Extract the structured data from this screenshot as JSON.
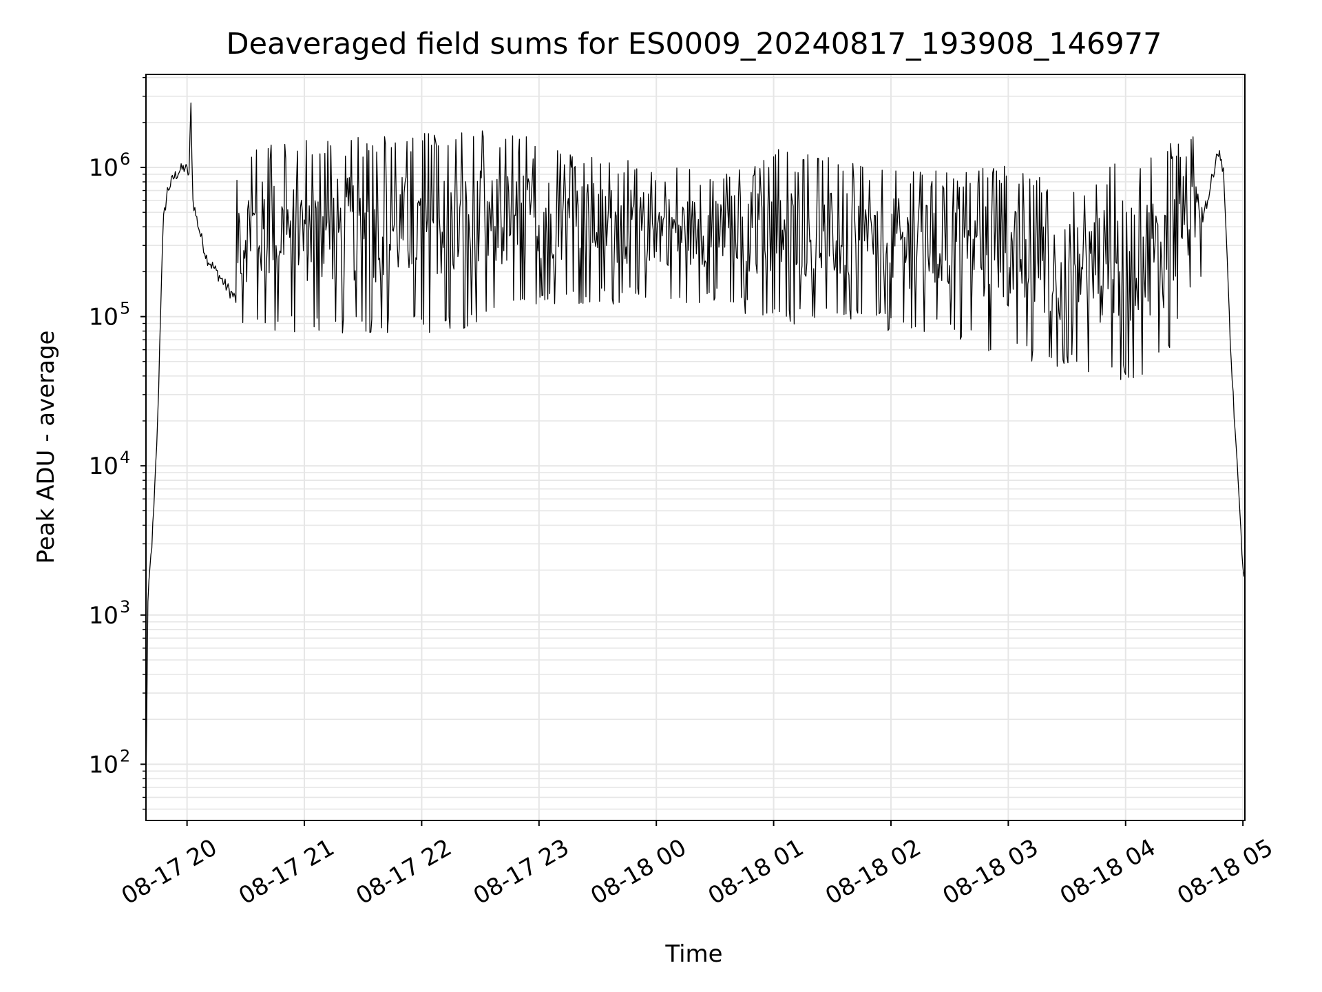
{
  "chart_data": {
    "type": "line",
    "title": "Deaveraged field sums for ES0009_20240817_193908_146977",
    "xlabel": "Time",
    "ylabel": "Peak ADU - average",
    "yscale": "log",
    "ylim": [
      42,
      4200000
    ],
    "xlim": [
      "2024-08-17 19:39",
      "2024-08-18 05:01"
    ],
    "grid": true,
    "legend": "none",
    "line_color": "#000000",
    "grid_color": "#e6e6e6",
    "x_ticks": [
      "08-17 20",
      "08-17 21",
      "08-17 22",
      "08-17 23",
      "08-18 00",
      "08-18 01",
      "08-18 02",
      "08-18 03",
      "08-18 04",
      "08-18 05"
    ],
    "x_tick_times": [
      "2024-08-17 20:00",
      "2024-08-17 21:00",
      "2024-08-17 22:00",
      "2024-08-17 23:00",
      "2024-08-18 00:00",
      "2024-08-18 01:00",
      "2024-08-18 02:00",
      "2024-08-18 03:00",
      "2024-08-18 04:00",
      "2024-08-18 05:00"
    ],
    "y_ticks": [
      {
        "base": "10",
        "exp": "2",
        "value": 100
      },
      {
        "base": "10",
        "exp": "3",
        "value": 1000
      },
      {
        "base": "10",
        "exp": "4",
        "value": 10000
      },
      {
        "base": "10",
        "exp": "5",
        "value": 100000
      },
      {
        "base": "10",
        "exp": "6",
        "value": 1000000
      }
    ],
    "series": [
      {
        "points": [
          [
            "2024-08-17 19:39",
            70
          ],
          [
            "2024-08-17 19:40",
            1200
          ],
          [
            "2024-08-17 19:41",
            2000
          ],
          [
            "2024-08-17 19:42",
            3000
          ],
          [
            "2024-08-17 19:43",
            5000
          ],
          [
            "2024-08-17 19:44",
            10000
          ],
          [
            "2024-08-17 19:45",
            20000
          ],
          [
            "2024-08-17 19:47",
            200000
          ],
          [
            "2024-08-17 19:48",
            450000
          ],
          [
            "2024-08-17 19:50",
            700000
          ],
          [
            "2024-08-17 19:53",
            850000
          ],
          [
            "2024-08-17 19:56",
            950000
          ],
          [
            "2024-08-17 19:59",
            1000000
          ],
          [
            "2024-08-17 20:01",
            900000
          ],
          [
            "2024-08-17 20:02",
            2600000
          ],
          [
            "2024-08-17 20:03",
            600000
          ],
          [
            "2024-08-17 20:05",
            450000
          ],
          [
            "2024-08-17 20:07",
            350000
          ],
          [
            "2024-08-17 20:10",
            250000
          ],
          [
            "2024-08-17 20:15",
            200000
          ],
          [
            "2024-08-17 20:20",
            160000
          ],
          [
            "2024-08-17 20:25",
            130000
          ],
          [
            "2024-08-17 20:30",
            110000
          ],
          [
            "2024-08-17 20:40",
            100000
          ],
          [
            "2024-08-17 21:00",
            105000
          ],
          [
            "2024-08-17 21:20",
            120000
          ],
          [
            "2024-08-17 21:40",
            115000
          ],
          [
            "2024-08-17 22:00",
            130000
          ],
          [
            "2024-08-17 22:20",
            150000
          ],
          [
            "2024-08-17 22:40",
            250000
          ],
          [
            "2024-08-17 23:00",
            350000
          ],
          [
            "2024-08-17 23:20",
            400000
          ],
          [
            "2024-08-17 23:40",
            450000
          ],
          [
            "2024-08-18 00:00",
            400000
          ],
          [
            "2024-08-18 00:20",
            350000
          ],
          [
            "2024-08-18 00:40",
            450000
          ],
          [
            "2024-08-18 01:00",
            400000
          ],
          [
            "2024-08-18 01:20",
            300000
          ],
          [
            "2024-08-18 01:40",
            300000
          ],
          [
            "2024-08-18 02:00",
            280000
          ],
          [
            "2024-08-18 02:20",
            250000
          ],
          [
            "2024-08-18 02:40",
            220000
          ],
          [
            "2024-08-18 03:00",
            150000
          ],
          [
            "2024-08-18 03:20",
            110000
          ],
          [
            "2024-08-18 03:40",
            80000
          ],
          [
            "2024-08-18 04:00",
            60000
          ],
          [
            "2024-08-18 04:15",
            80000
          ],
          [
            "2024-08-18 04:25",
            200000
          ],
          [
            "2024-08-18 04:35",
            400000
          ],
          [
            "2024-08-18 04:42",
            600000
          ],
          [
            "2024-08-18 04:47",
            1300000
          ],
          [
            "2024-08-18 04:50",
            1000000
          ],
          [
            "2024-08-18 04:54",
            50000
          ],
          [
            "2024-08-18 04:57",
            10000
          ],
          [
            "2024-08-18 04:59",
            3500
          ],
          [
            "2024-08-18 05:00",
            2000
          ]
        ],
        "band": {
          "from": "2024-08-17 20:25",
          "to": "2024-08-18 04:40",
          "high_points": [
            [
              "2024-08-17 20:25",
              1400000
            ],
            [
              "2024-08-17 22:30",
              1700000
            ],
            [
              "2024-08-17 23:00",
              1500000
            ],
            [
              "2024-08-17 23:30",
              1200000
            ],
            [
              "2024-08-18 00:00",
              1000000
            ],
            [
              "2024-08-18 00:30",
              900000
            ],
            [
              "2024-08-18 01:00",
              1300000
            ],
            [
              "2024-08-18 01:30",
              1100000
            ],
            [
              "2024-08-18 02:00",
              1000000
            ],
            [
              "2024-08-18 02:30",
              900000
            ],
            [
              "2024-08-18 03:00",
              1000000
            ],
            [
              "2024-08-18 03:30",
              700000
            ],
            [
              "2024-08-18 04:00",
              1200000
            ],
            [
              "2024-08-18 04:40",
              1600000
            ]
          ],
          "low_points": [
            [
              "2024-08-17 20:25",
              100000
            ],
            [
              "2024-08-17 21:30",
              95000
            ],
            [
              "2024-08-17 22:30",
              100000
            ],
            [
              "2024-08-17 23:00",
              150000
            ],
            [
              "2024-08-17 23:30",
              150000
            ],
            [
              "2024-08-18 00:00",
              150000
            ],
            [
              "2024-08-18 00:30",
              150000
            ],
            [
              "2024-08-18 01:00",
              110000
            ],
            [
              "2024-08-18 01:30",
              110000
            ],
            [
              "2024-08-18 02:00",
              100000
            ],
            [
              "2024-08-18 02:30",
              90000
            ],
            [
              "2024-08-18 03:00",
              65000
            ],
            [
              "2024-08-18 03:30",
              55000
            ],
            [
              "2024-08-18 04:00",
              45000
            ],
            [
              "2024-08-18 04:20",
              60000
            ],
            [
              "2024-08-18 04:40",
              250000
            ]
          ]
        }
      }
    ]
  }
}
